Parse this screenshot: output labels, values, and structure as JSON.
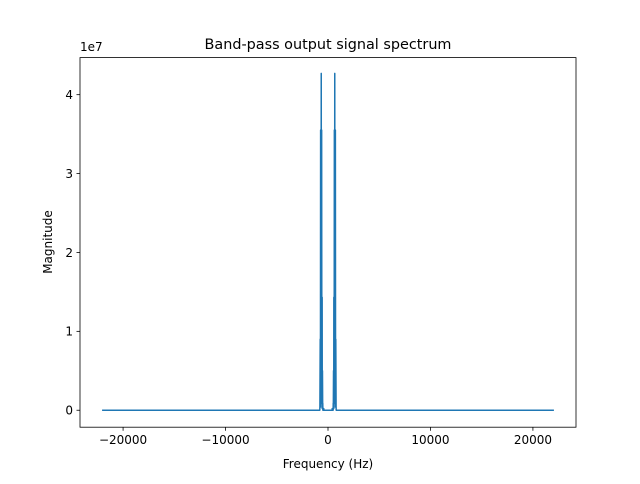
{
  "chart_data": {
    "type": "line",
    "title": "Band-pass output signal spectrum",
    "xlabel": "Frequency (Hz)",
    "ylabel": "Magnitude",
    "y_offset_label": "1e7",
    "xlim": [
      -24205,
      24205
    ],
    "ylim": [
      -2150000,
      44700000
    ],
    "x_ticks": [
      -20000,
      -10000,
      0,
      10000,
      20000
    ],
    "x_tick_labels": [
      "−20000",
      "−10000",
      "0",
      "10000",
      "20000"
    ],
    "y_ticks": [
      0,
      10000000,
      20000000,
      30000000,
      40000000
    ],
    "y_tick_labels": [
      "0",
      "1",
      "2",
      "3",
      "4"
    ],
    "grid": false,
    "series": [
      {
        "color": "#1f77b4",
        "x": [
          -22050,
          -800,
          -790,
          -760,
          -740,
          -720,
          -700,
          -690,
          -680,
          -660,
          -640,
          -620,
          -600,
          -590,
          -580,
          -570,
          -560,
          -540,
          -520,
          -510,
          -500,
          -420,
          -410,
          -400,
          400,
          410,
          420,
          500,
          510,
          520,
          540,
          560,
          570,
          580,
          590,
          600,
          620,
          640,
          660,
          680,
          690,
          700,
          720,
          740,
          760,
          790,
          800,
          22050
        ],
        "y": [
          0,
          0,
          500000,
          9000000,
          400000,
          35500000,
          3000000,
          14000000,
          1500000,
          42700000,
          1000000,
          35500000,
          800000,
          9200000,
          300000,
          14300000,
          200000,
          5000000,
          300000,
          900000,
          0,
          0,
          200000,
          0,
          0,
          200000,
          0,
          0,
          900000,
          300000,
          5000000,
          200000,
          14300000,
          300000,
          9200000,
          800000,
          35500000,
          1000000,
          42700000,
          1500000,
          14000000,
          3000000,
          35500000,
          400000,
          9000000,
          500000,
          0,
          0
        ]
      }
    ]
  }
}
